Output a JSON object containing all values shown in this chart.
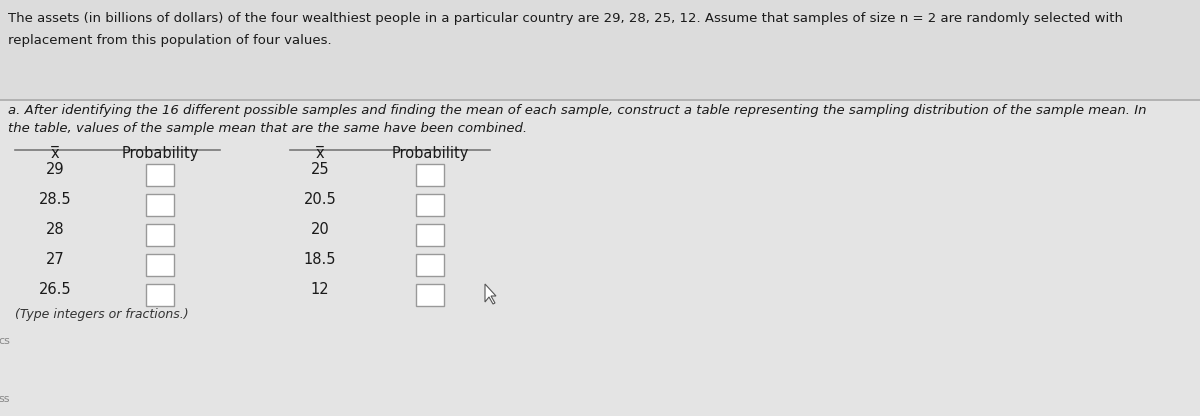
{
  "title_line1": "The assets (in billions of dollars) of the four wealthiest people in a particular country are 29, 28, 25, 12. Assume that samples of size n = 2 are randomly selected with",
  "title_line2": "replacement from this population of four values.",
  "part_a_line1": "a. After identifying the 16 different possible samples and finding the mean of each sample, construct a table representing the sampling distribution of the sample mean. In",
  "part_a_line2": "the table, values of the sample mean that are the same have been combined.",
  "col_header_x": "x̅",
  "col_header_prob": "Probability",
  "table1_x": [
    "29",
    "28.5",
    "28",
    "27",
    "26.5"
  ],
  "table2_x": [
    "25",
    "20.5",
    "20",
    "18.5",
    "12"
  ],
  "footer": "(Type integers or fractions.)",
  "bg_top": "#dcdcdc",
  "bg_bottom": "#e4e4e4",
  "sep_line_color": "#aaaaaa",
  "table_line_color": "#777777",
  "box_edge_color": "#999999",
  "box_face_color": "#ffffff",
  "text_color": "#1a1a1a",
  "footer_color": "#333333",
  "title_fontsize": 9.5,
  "body_fontsize": 9.5,
  "table_fontsize": 10.5,
  "header_fontsize": 10.5
}
